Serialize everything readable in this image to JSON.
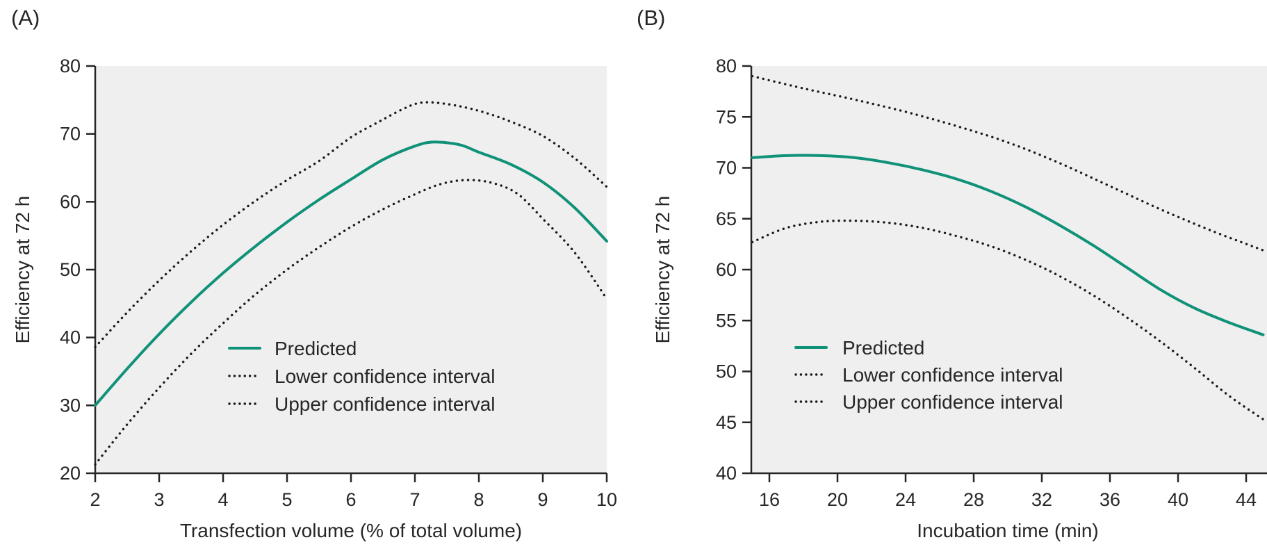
{
  "colors": {
    "predicted": "#109278",
    "confidence": "#1a1a1a",
    "plot_background": "#efefef",
    "axis": "#262626",
    "text": "#262626"
  },
  "chart_data": [
    {
      "type": "line",
      "panel_label": "(A)",
      "xlabel": "Transfection volume (% of total volume)",
      "ylabel": "Efficiency at 72 h",
      "xlim": [
        2,
        10
      ],
      "ylim": [
        20,
        80
      ],
      "xticks": [
        2,
        3,
        4,
        5,
        6,
        7,
        8,
        9,
        10
      ],
      "yticks": [
        20,
        30,
        40,
        50,
        60,
        70,
        80
      ],
      "grid": false,
      "legend_position": "inside lower-center",
      "series": [
        {
          "name": "Predicted",
          "style": "solid",
          "color": "#109278",
          "points": [
            [
              2,
              30
            ],
            [
              2.5,
              35.4
            ],
            [
              3,
              40.5
            ],
            [
              3.5,
              45.2
            ],
            [
              4,
              49.5
            ],
            [
              4.5,
              53.4
            ],
            [
              5,
              57
            ],
            [
              5.5,
              60.3
            ],
            [
              6,
              63.3
            ],
            [
              6.5,
              66.2
            ],
            [
              7,
              68.2
            ],
            [
              7.3,
              68.8
            ],
            [
              7.7,
              68.4
            ],
            [
              8,
              67.3
            ],
            [
              8.5,
              65.5
            ],
            [
              9,
              62.9
            ],
            [
              9.5,
              59.1
            ],
            [
              10,
              54.2
            ]
          ]
        },
        {
          "name": "Lower confidence interval",
          "style": "dotted",
          "color": "#1a1a1a",
          "points": [
            [
              2,
              21.3
            ],
            [
              2.5,
              27.2
            ],
            [
              3,
              32.6
            ],
            [
              3.5,
              37.6
            ],
            [
              4,
              42.1
            ],
            [
              4.5,
              46.3
            ],
            [
              5,
              50
            ],
            [
              5.5,
              53.3
            ],
            [
              6,
              56.3
            ],
            [
              6.5,
              58.9
            ],
            [
              7,
              61.1
            ],
            [
              7.4,
              62.6
            ],
            [
              7.8,
              63.2
            ],
            [
              8.2,
              62.8
            ],
            [
              8.6,
              61.2
            ],
            [
              9,
              57.5
            ],
            [
              9.5,
              52.5
            ],
            [
              10,
              45.7
            ]
          ]
        },
        {
          "name": "Upper confidence interval",
          "style": "dotted",
          "color": "#1a1a1a",
          "points": [
            [
              2,
              38.6
            ],
            [
              2.5,
              43.7
            ],
            [
              3,
              48.4
            ],
            [
              3.5,
              52.7
            ],
            [
              4,
              56.6
            ],
            [
              4.5,
              60.1
            ],
            [
              5,
              63.2
            ],
            [
              5.5,
              66
            ],
            [
              6,
              69.5
            ],
            [
              6.4,
              71.6
            ],
            [
              6.8,
              73.6
            ],
            [
              7.1,
              74.6
            ],
            [
              7.5,
              74.4
            ],
            [
              8,
              73.4
            ],
            [
              8.5,
              71.8
            ],
            [
              9,
              69.7
            ],
            [
              9.5,
              66.4
            ],
            [
              10,
              62.2
            ]
          ]
        }
      ]
    },
    {
      "type": "line",
      "panel_label": "(B)",
      "xlabel": "Incubation time (min)",
      "ylabel": "Efficiency at 72 h",
      "xlim": [
        15,
        45
      ],
      "ylim": [
        40,
        80
      ],
      "xticks": [
        16,
        20,
        24,
        28,
        32,
        36,
        40,
        44
      ],
      "yticks": [
        40,
        45,
        50,
        55,
        60,
        65,
        70,
        75,
        80
      ],
      "grid": false,
      "legend_position": "inside lower-left",
      "series": [
        {
          "name": "Predicted",
          "style": "solid",
          "color": "#109278",
          "points": [
            [
              15,
              71
            ],
            [
              17,
              71.2
            ],
            [
              19,
              71.2
            ],
            [
              21,
              71
            ],
            [
              23,
              70.5
            ],
            [
              25,
              69.8
            ],
            [
              27,
              68.9
            ],
            [
              29,
              67.7
            ],
            [
              31,
              66.2
            ],
            [
              33,
              64.4
            ],
            [
              35,
              62.4
            ],
            [
              37,
              60.2
            ],
            [
              39,
              58
            ],
            [
              41,
              56.2
            ],
            [
              43,
              54.8
            ],
            [
              45,
              53.6
            ]
          ]
        },
        {
          "name": "Lower confidence interval",
          "style": "dotted",
          "color": "#1a1a1a",
          "points": [
            [
              15,
              62.7
            ],
            [
              17,
              64.1
            ],
            [
              19,
              64.7
            ],
            [
              21,
              64.8
            ],
            [
              23,
              64.6
            ],
            [
              25,
              64.1
            ],
            [
              27,
              63.3
            ],
            [
              29,
              62.3
            ],
            [
              31,
              61
            ],
            [
              33,
              59.4
            ],
            [
              35,
              57.5
            ],
            [
              37,
              55.3
            ],
            [
              39,
              52.9
            ],
            [
              41,
              50.3
            ],
            [
              43,
              47.6
            ],
            [
              45,
              45.3
            ]
          ]
        },
        {
          "name": "Upper confidence interval",
          "style": "dotted",
          "color": "#1a1a1a",
          "points": [
            [
              15,
              79
            ],
            [
              18,
              77.8
            ],
            [
              21,
              76.7
            ],
            [
              24,
              75.5
            ],
            [
              27,
              74.1
            ],
            [
              30,
              72.5
            ],
            [
              33,
              70.5
            ],
            [
              36,
              68.2
            ],
            [
              39,
              65.9
            ],
            [
              42,
              63.8
            ],
            [
              45,
              61.9
            ]
          ]
        }
      ]
    }
  ]
}
